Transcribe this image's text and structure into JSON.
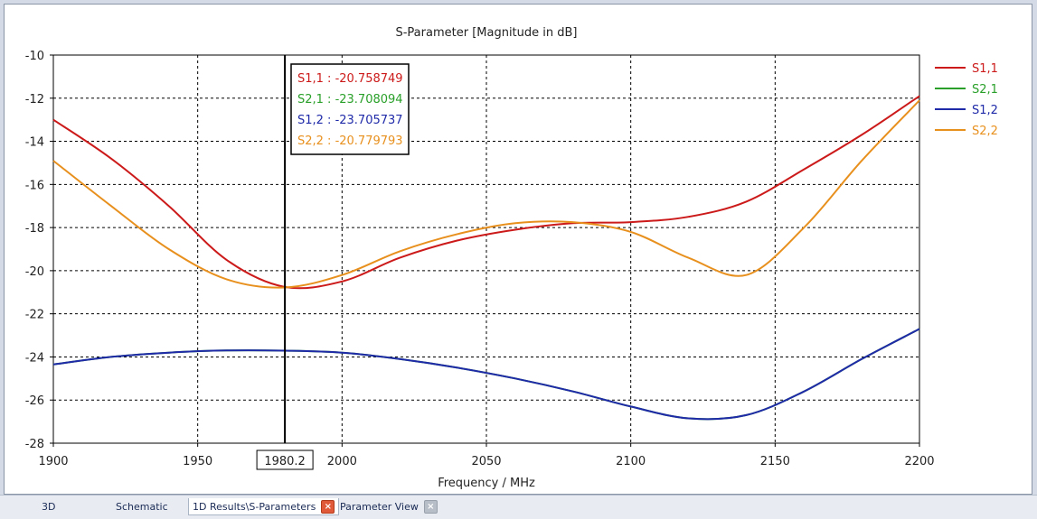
{
  "chart_data": {
    "type": "line",
    "title": "S-Parameter [Magnitude in dB]",
    "xlabel": "Frequency / MHz",
    "ylabel": "",
    "xlim": [
      1900,
      2200
    ],
    "ylim": [
      -28,
      -10
    ],
    "xticks": [
      1900,
      1950,
      2000,
      2050,
      2100,
      2150,
      2200
    ],
    "yticks": [
      -10,
      -12,
      -14,
      -16,
      -18,
      -20,
      -22,
      -24,
      -26,
      -28
    ],
    "grid": true,
    "legend_position": "right",
    "marker": {
      "x": 1980.2,
      "label": "1980.2",
      "readouts": [
        {
          "text": "S1,1 : -20.758749",
          "color": "#cc1a1a"
        },
        {
          "text": "S2,1 : -23.708094",
          "color": "#2aa02a"
        },
        {
          "text": "S1,2 : -23.705737",
          "color": "#1f2aa8"
        },
        {
          "text": "S2,2 : -20.779793",
          "color": "#e8901e"
        }
      ]
    },
    "x": [
      1900,
      1920,
      1940,
      1960,
      1980,
      2000,
      2020,
      2040,
      2060,
      2080,
      2100,
      2120,
      2140,
      2160,
      2180,
      2200
    ],
    "series": [
      {
        "name": "S1,1",
        "color": "#cc1a1a",
        "values": [
          -13.0,
          -14.8,
          -17.0,
          -19.5,
          -20.75,
          -20.5,
          -19.4,
          -18.6,
          -18.1,
          -17.8,
          -17.75,
          -17.5,
          -16.8,
          -15.3,
          -13.7,
          -11.9
        ]
      },
      {
        "name": "S2,1",
        "color": "#2aa02a",
        "values": [
          -24.35,
          -24.0,
          -23.8,
          -23.7,
          -23.71,
          -23.8,
          -24.1,
          -24.5,
          -25.0,
          -25.6,
          -26.3,
          -26.85,
          -26.7,
          -25.6,
          -24.1,
          -22.7
        ]
      },
      {
        "name": "S1,2",
        "color": "#1f2aa8",
        "values": [
          -24.35,
          -24.0,
          -23.8,
          -23.7,
          -23.71,
          -23.8,
          -24.1,
          -24.5,
          -25.0,
          -25.6,
          -26.3,
          -26.85,
          -26.7,
          -25.6,
          -24.1,
          -22.7
        ]
      },
      {
        "name": "S2,2",
        "color": "#e8901e",
        "values": [
          -14.9,
          -17.0,
          -19.0,
          -20.4,
          -20.78,
          -20.2,
          -19.1,
          -18.3,
          -17.8,
          -17.75,
          -18.2,
          -19.4,
          -20.2,
          -18.0,
          -14.9,
          -12.1
        ]
      }
    ]
  },
  "tabs": [
    {
      "label": "3D"
    },
    {
      "label": "Schematic"
    },
    {
      "label": "1D Results\\S-Parameters",
      "close": "×"
    },
    {
      "label": "Parameter View",
      "close": "×"
    }
  ]
}
